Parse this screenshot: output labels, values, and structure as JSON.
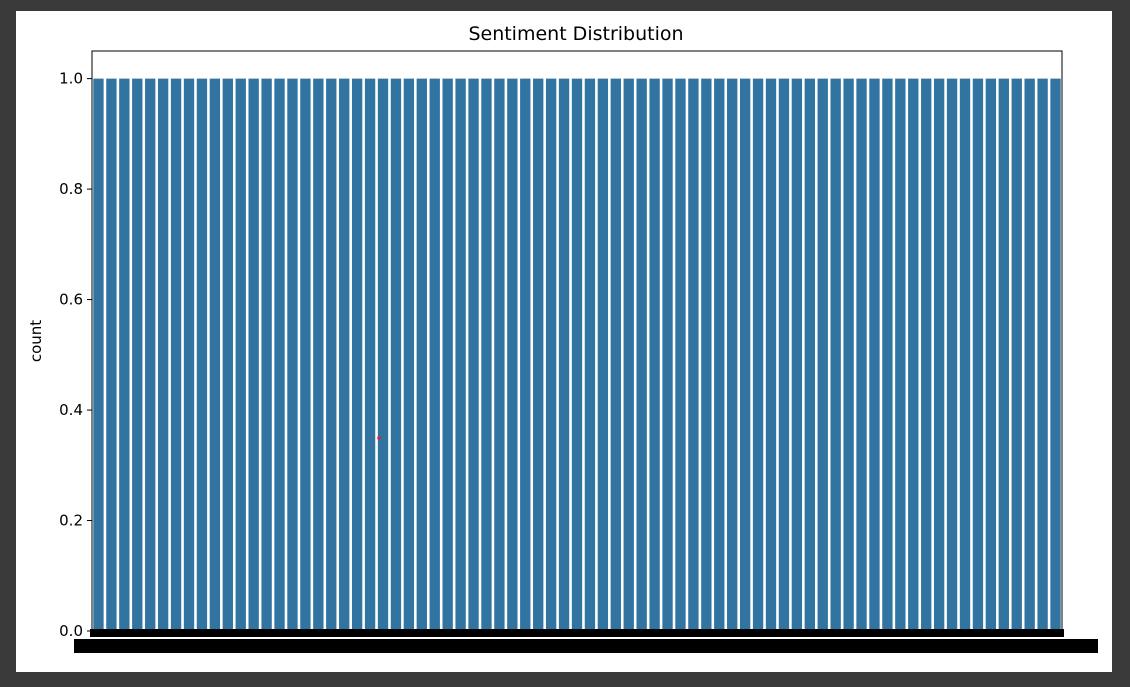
{
  "chart_data": {
    "type": "bar",
    "title": "Sentiment Distribution",
    "xlabel": "",
    "ylabel": "count",
    "ylim": [
      0,
      1.05
    ],
    "yticks": [
      0.0,
      0.2,
      0.4,
      0.6,
      0.8,
      1.0
    ],
    "ytick_labels": [
      "0.0",
      "0.2",
      "0.4",
      "0.6",
      "0.8",
      "1.0"
    ],
    "bar_count": 75,
    "bar_value": 1.0,
    "bar_color": "#3274a1",
    "grid": false,
    "legend": "none",
    "xtick_labels_note": "overlapping, illegible"
  },
  "page": {
    "background": "#3a3a3a",
    "figure_background": "#ffffff"
  }
}
